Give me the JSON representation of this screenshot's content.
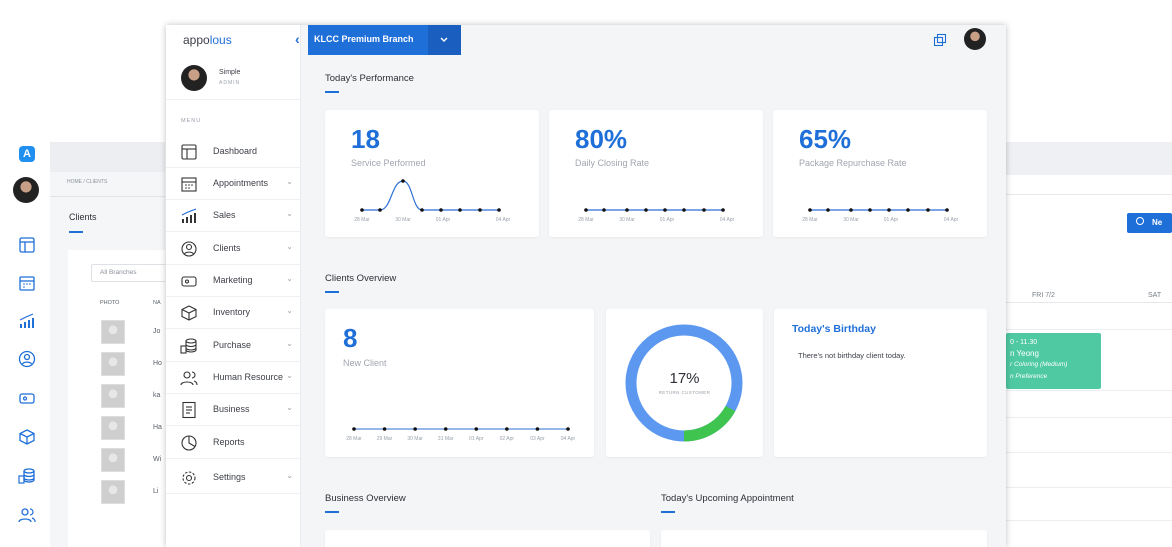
{
  "bg_left": {
    "breadcrumb": "HOME / CLIENTS",
    "page_title": "Clients",
    "filter_placeholder": "All Branches",
    "col_photo": "PHOTO",
    "col_name": "NA",
    "rows": [
      "Jo",
      "Ho",
      "ka",
      "Ha",
      "Wi",
      "Li"
    ]
  },
  "bg_right": {
    "day1": "FRI 7/2",
    "day2": "SAT",
    "new_button": "Ne",
    "appointment": {
      "time": "0 - 11.30",
      "name": "n Yeong",
      "service": "r Coloring (Medium)",
      "pref": "n Preference"
    }
  },
  "sidebar": {
    "logo_a": "appo",
    "logo_b": "lous",
    "collapse_icon": "‹",
    "user_name": "Simple",
    "user_role": "ADMIN",
    "menu_label": "MENU",
    "items": [
      {
        "label": "Dashboard",
        "icon": "dashboard-icon",
        "caret": ""
      },
      {
        "label": "Appointments",
        "icon": "calendar-icon",
        "caret": "⌄"
      },
      {
        "label": "Sales",
        "icon": "sales-chart-icon",
        "caret": "⌄"
      },
      {
        "label": "Clients",
        "icon": "clients-icon",
        "caret": "⌄"
      },
      {
        "label": "Marketing",
        "icon": "marketing-icon",
        "caret": "⌄"
      },
      {
        "label": "Inventory",
        "icon": "box-icon",
        "caret": "⌄"
      },
      {
        "label": "Purchase",
        "icon": "coins-icon",
        "caret": "⌄"
      },
      {
        "label": "Human Resource",
        "icon": "people-icon",
        "caret": "⌄"
      },
      {
        "label": "Business",
        "icon": "document-icon",
        "caret": "⌄"
      },
      {
        "label": "Reports",
        "icon": "pie-icon",
        "caret": ""
      },
      {
        "label": "Settings",
        "icon": "gear-icon",
        "caret": "⌄"
      }
    ]
  },
  "topbar": {
    "branch": "KLCC Premium Branch"
  },
  "performance": {
    "title": "Today's Performance",
    "cards": [
      {
        "value": "18",
        "label": "Service Performed",
        "dates": [
          "28 Mar",
          "30 Mar",
          "01 Apr",
          "04 Apr"
        ]
      },
      {
        "value": "80%",
        "label": "Daily Closing Rate",
        "dates": [
          "28 Mar",
          "30 Mar",
          "01 Apr",
          "04 Apr"
        ]
      },
      {
        "value": "65%",
        "label": "Package Repurchase Rate",
        "dates": [
          "28 Mar",
          "30 Mar",
          "01 Apr",
          "04 Apr"
        ]
      }
    ]
  },
  "clients_overview": {
    "title": "Clients Overview",
    "new_client_value": "8",
    "new_client_label": "New Client",
    "dates": [
      "28 Mar",
      "29 Mar",
      "30 Mar",
      "31 Mar",
      "01 Apr",
      "02 Apr",
      "03 Apr",
      "04 Apr"
    ],
    "donut_value": "17%",
    "donut_label": "RETURN CUSTOMER",
    "donut_fraction": 0.17,
    "birthday_title": "Today's Birthday",
    "birthday_text": "There's not birthday client today."
  },
  "bottom": {
    "business_title": "Business Overview",
    "upcoming_title": "Today's Upcoming Appointment"
  },
  "colors": {
    "accent": "#1f6fd9",
    "donut_base": "#5c97f0",
    "donut_highlight": "#3fc44f",
    "appointment": "#4fc9a2"
  }
}
